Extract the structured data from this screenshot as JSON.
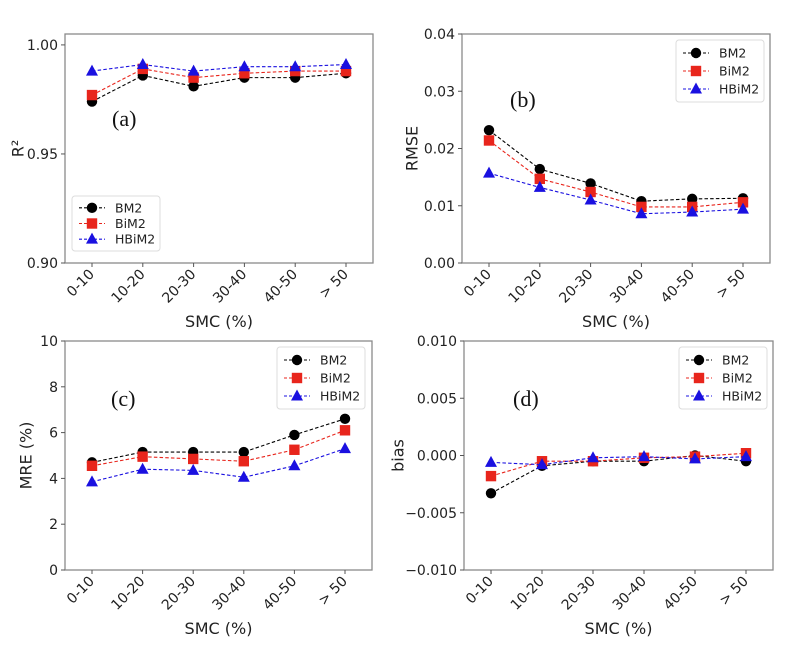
{
  "chart_data": [
    {
      "type": "line",
      "panel_label": "(a)",
      "xlabel": "SMC (%)",
      "ylabel": "R²",
      "categories": [
        "0-10",
        "10-20",
        "20-30",
        "30-40",
        "40-50",
        "> 50"
      ],
      "ylim": [
        0.9,
        1.005
      ],
      "yticks": [
        0.9,
        0.95,
        1.0
      ],
      "ytick_labels": [
        "0.90",
        "0.95",
        "1.00"
      ],
      "legend_position": "lower-left",
      "grid": false,
      "series": [
        {
          "name": "BM2",
          "color": "#000000",
          "marker": "circle",
          "values": [
            0.974,
            0.986,
            0.981,
            0.985,
            0.985,
            0.987
          ]
        },
        {
          "name": "BiM2",
          "color": "#e8251c",
          "marker": "square",
          "values": [
            0.977,
            0.989,
            0.985,
            0.987,
            0.988,
            0.988
          ]
        },
        {
          "name": "HBiM2",
          "color": "#1a10e0",
          "marker": "triangle",
          "values": [
            0.988,
            0.991,
            0.988,
            0.99,
            0.99,
            0.991
          ]
        }
      ]
    },
    {
      "type": "line",
      "panel_label": "(b)",
      "xlabel": "SMC (%)",
      "ylabel": "RMSE",
      "categories": [
        "0-10",
        "10-20",
        "20-30",
        "30-40",
        "40-50",
        "> 50"
      ],
      "ylim": [
        0.0,
        0.04
      ],
      "yticks": [
        0.0,
        0.01,
        0.02,
        0.03,
        0.04
      ],
      "ytick_labels": [
        "0.00",
        "0.01",
        "0.02",
        "0.03",
        "0.04"
      ],
      "legend_position": "upper-right",
      "grid": false,
      "series": [
        {
          "name": "BM2",
          "color": "#000000",
          "marker": "circle",
          "values": [
            0.0232,
            0.0164,
            0.0139,
            0.0108,
            0.0112,
            0.0113
          ]
        },
        {
          "name": "BiM2",
          "color": "#e8251c",
          "marker": "square",
          "values": [
            0.0214,
            0.0147,
            0.0124,
            0.0098,
            0.0098,
            0.0106
          ]
        },
        {
          "name": "HBiM2",
          "color": "#1a10e0",
          "marker": "triangle",
          "values": [
            0.0157,
            0.0132,
            0.011,
            0.0086,
            0.0089,
            0.0094
          ]
        }
      ]
    },
    {
      "type": "line",
      "panel_label": "(c)",
      "xlabel": "SMC (%)",
      "ylabel": "MRE (%)",
      "categories": [
        "0-10",
        "10-20",
        "20-30",
        "30-40",
        "40-50",
        "> 50"
      ],
      "ylim": [
        0,
        10
      ],
      "yticks": [
        0,
        2,
        4,
        6,
        8,
        10
      ],
      "ytick_labels": [
        "0",
        "2",
        "4",
        "6",
        "8",
        "10"
      ],
      "legend_position": "upper-right",
      "grid": false,
      "series": [
        {
          "name": "BM2",
          "color": "#000000",
          "marker": "circle",
          "values": [
            4.7,
            5.15,
            5.15,
            5.15,
            5.9,
            6.6
          ]
        },
        {
          "name": "BiM2",
          "color": "#e8251c",
          "marker": "square",
          "values": [
            4.55,
            4.95,
            4.85,
            4.75,
            5.25,
            6.1
          ]
        },
        {
          "name": "HBiM2",
          "color": "#1a10e0",
          "marker": "triangle",
          "values": [
            3.85,
            4.4,
            4.35,
            4.05,
            4.55,
            5.3
          ]
        }
      ]
    },
    {
      "type": "line",
      "panel_label": "(d)",
      "xlabel": "SMC (%)",
      "ylabel": "bias",
      "categories": [
        "0-10",
        "10-20",
        "20-30",
        "30-40",
        "40-50",
        "> 50"
      ],
      "ylim": [
        -0.01,
        0.01
      ],
      "yticks": [
        -0.01,
        -0.005,
        0.0,
        0.005,
        0.01
      ],
      "ytick_labels": [
        "−0.010",
        "−0.005",
        "0.000",
        "0.005",
        "0.010"
      ],
      "legend_position": "upper-right",
      "grid": false,
      "series": [
        {
          "name": "BM2",
          "color": "#000000",
          "marker": "circle",
          "values": [
            -0.0033,
            -0.0009,
            -0.0005,
            -0.0005,
            0.0,
            -0.0005
          ]
        },
        {
          "name": "BiM2",
          "color": "#e8251c",
          "marker": "square",
          "values": [
            -0.0018,
            -0.0005,
            -0.0005,
            -0.0002,
            -0.0001,
            0.0002
          ]
        },
        {
          "name": "HBiM2",
          "color": "#1a10e0",
          "marker": "triangle",
          "values": [
            -0.0006,
            -0.0008,
            -0.0002,
            -0.0001,
            -0.0003,
            -0.0001
          ]
        }
      ]
    }
  ]
}
